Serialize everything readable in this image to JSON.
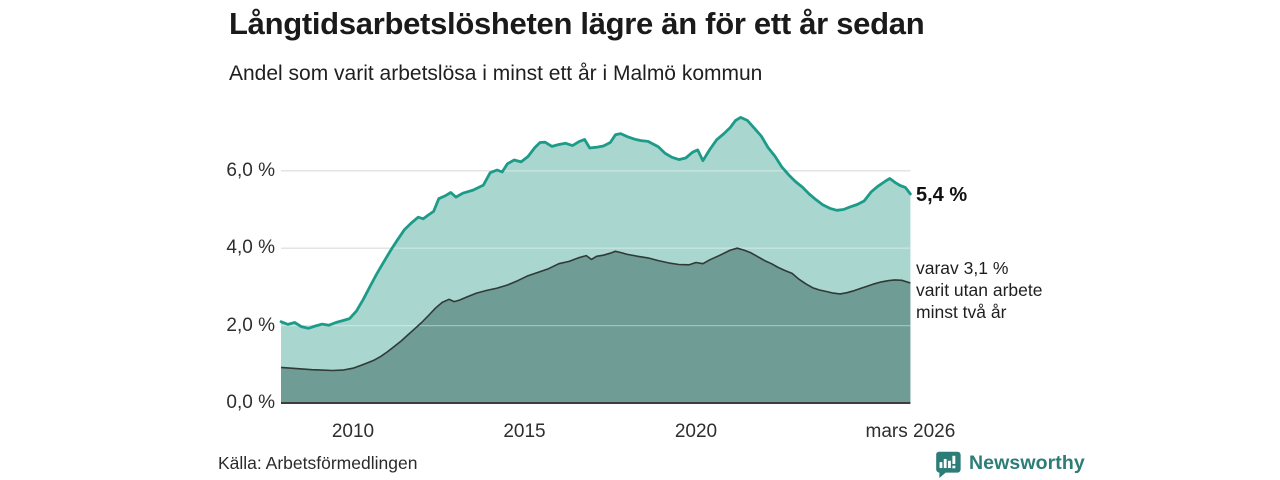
{
  "header": {
    "title": "Långtidsarbetslösheten lägre än för ett år sedan",
    "subtitle": "Andel som varit arbetslösa i minst ett år i Malmö kommun"
  },
  "chart_data": {
    "type": "area",
    "title": "Långtidsarbetslösheten lägre än för ett år sedan",
    "subtitle": "Andel som varit arbetslösa i minst ett år i Malmö kommun",
    "unit": "%",
    "x_range": [
      2007.9,
      2026.25
    ],
    "ylim": [
      0,
      7.6
    ],
    "grid": true,
    "y_ticks": [
      {
        "label": "0,0 %",
        "value": 0
      },
      {
        "label": "2,0 %",
        "value": 2
      },
      {
        "label": "4,0 %",
        "value": 4
      },
      {
        "label": "6,0 %",
        "value": 6
      }
    ],
    "x_ticks": [
      {
        "label": "2010",
        "year": 2010
      },
      {
        "label": "2015",
        "year": 2015
      },
      {
        "label": "2020",
        "year": 2020
      },
      {
        "label": "mars 2026",
        "year": 2026.25
      }
    ],
    "series": [
      {
        "name": "Andel som varit arbetslösa i minst ett år",
        "stroke": "#1d9b89",
        "fill": "#a9d6cf",
        "stroke_width": 2.8,
        "latest_value": 5.4,
        "points": [
          [
            2007.9,
            2.1
          ],
          [
            2008.1,
            2.03
          ],
          [
            2008.3,
            2.08
          ],
          [
            2008.5,
            1.97
          ],
          [
            2008.7,
            1.93
          ],
          [
            2008.9,
            1.99
          ],
          [
            2009.1,
            2.04
          ],
          [
            2009.3,
            2.01
          ],
          [
            2009.5,
            2.08
          ],
          [
            2009.7,
            2.13
          ],
          [
            2009.9,
            2.18
          ],
          [
            2010.1,
            2.38
          ],
          [
            2010.3,
            2.68
          ],
          [
            2010.5,
            3.02
          ],
          [
            2010.7,
            3.35
          ],
          [
            2010.9,
            3.65
          ],
          [
            2011.1,
            3.95
          ],
          [
            2011.3,
            4.22
          ],
          [
            2011.5,
            4.48
          ],
          [
            2011.7,
            4.65
          ],
          [
            2011.9,
            4.8
          ],
          [
            2012.05,
            4.76
          ],
          [
            2012.2,
            4.86
          ],
          [
            2012.35,
            4.95
          ],
          [
            2012.5,
            5.28
          ],
          [
            2012.7,
            5.36
          ],
          [
            2012.85,
            5.44
          ],
          [
            2013.0,
            5.32
          ],
          [
            2013.2,
            5.42
          ],
          [
            2013.5,
            5.5
          ],
          [
            2013.8,
            5.63
          ],
          [
            2014.0,
            5.95
          ],
          [
            2014.2,
            6.02
          ],
          [
            2014.35,
            5.97
          ],
          [
            2014.5,
            6.18
          ],
          [
            2014.7,
            6.28
          ],
          [
            2014.9,
            6.23
          ],
          [
            2015.1,
            6.37
          ],
          [
            2015.3,
            6.6
          ],
          [
            2015.45,
            6.73
          ],
          [
            2015.6,
            6.74
          ],
          [
            2015.8,
            6.63
          ],
          [
            2016.0,
            6.68
          ],
          [
            2016.2,
            6.71
          ],
          [
            2016.4,
            6.65
          ],
          [
            2016.6,
            6.76
          ],
          [
            2016.75,
            6.81
          ],
          [
            2016.9,
            6.59
          ],
          [
            2017.1,
            6.61
          ],
          [
            2017.3,
            6.64
          ],
          [
            2017.5,
            6.73
          ],
          [
            2017.65,
            6.93
          ],
          [
            2017.8,
            6.96
          ],
          [
            2018.0,
            6.88
          ],
          [
            2018.2,
            6.82
          ],
          [
            2018.4,
            6.78
          ],
          [
            2018.6,
            6.76
          ],
          [
            2018.9,
            6.62
          ],
          [
            2019.1,
            6.45
          ],
          [
            2019.3,
            6.35
          ],
          [
            2019.5,
            6.29
          ],
          [
            2019.7,
            6.33
          ],
          [
            2019.9,
            6.48
          ],
          [
            2020.05,
            6.54
          ],
          [
            2020.2,
            6.26
          ],
          [
            2020.4,
            6.55
          ],
          [
            2020.6,
            6.8
          ],
          [
            2020.8,
            6.95
          ],
          [
            2021.0,
            7.12
          ],
          [
            2021.15,
            7.3
          ],
          [
            2021.3,
            7.38
          ],
          [
            2021.5,
            7.3
          ],
          [
            2021.7,
            7.1
          ],
          [
            2021.9,
            6.9
          ],
          [
            2022.1,
            6.6
          ],
          [
            2022.3,
            6.38
          ],
          [
            2022.5,
            6.1
          ],
          [
            2022.7,
            5.9
          ],
          [
            2022.9,
            5.72
          ],
          [
            2023.1,
            5.58
          ],
          [
            2023.3,
            5.4
          ],
          [
            2023.5,
            5.25
          ],
          [
            2023.7,
            5.12
          ],
          [
            2023.9,
            5.03
          ],
          [
            2024.1,
            4.98
          ],
          [
            2024.3,
            5.0
          ],
          [
            2024.5,
            5.07
          ],
          [
            2024.7,
            5.13
          ],
          [
            2024.9,
            5.22
          ],
          [
            2025.1,
            5.45
          ],
          [
            2025.3,
            5.6
          ],
          [
            2025.5,
            5.72
          ],
          [
            2025.65,
            5.8
          ],
          [
            2025.8,
            5.7
          ],
          [
            2025.95,
            5.62
          ],
          [
            2026.1,
            5.57
          ],
          [
            2026.25,
            5.4
          ]
        ]
      },
      {
        "name": "varav utan arbete minst två år",
        "stroke": "#303a37",
        "fill": "#6f9c95",
        "stroke_width": 1.6,
        "latest_value": 3.1,
        "points": [
          [
            2007.9,
            0.92
          ],
          [
            2008.2,
            0.9
          ],
          [
            2008.5,
            0.88
          ],
          [
            2008.8,
            0.86
          ],
          [
            2009.1,
            0.85
          ],
          [
            2009.4,
            0.84
          ],
          [
            2009.7,
            0.85
          ],
          [
            2010.0,
            0.9
          ],
          [
            2010.2,
            0.96
          ],
          [
            2010.4,
            1.03
          ],
          [
            2010.6,
            1.1
          ],
          [
            2010.8,
            1.2
          ],
          [
            2011.0,
            1.32
          ],
          [
            2011.2,
            1.46
          ],
          [
            2011.4,
            1.6
          ],
          [
            2011.6,
            1.76
          ],
          [
            2011.8,
            1.92
          ],
          [
            2012.0,
            2.08
          ],
          [
            2012.2,
            2.26
          ],
          [
            2012.4,
            2.45
          ],
          [
            2012.6,
            2.6
          ],
          [
            2012.8,
            2.68
          ],
          [
            2012.95,
            2.62
          ],
          [
            2013.1,
            2.66
          ],
          [
            2013.3,
            2.73
          ],
          [
            2013.6,
            2.84
          ],
          [
            2013.9,
            2.91
          ],
          [
            2014.2,
            2.97
          ],
          [
            2014.5,
            3.05
          ],
          [
            2014.8,
            3.16
          ],
          [
            2015.1,
            3.29
          ],
          [
            2015.4,
            3.38
          ],
          [
            2015.7,
            3.47
          ],
          [
            2016.0,
            3.6
          ],
          [
            2016.3,
            3.66
          ],
          [
            2016.6,
            3.76
          ],
          [
            2016.8,
            3.81
          ],
          [
            2016.95,
            3.71
          ],
          [
            2017.1,
            3.79
          ],
          [
            2017.3,
            3.82
          ],
          [
            2017.5,
            3.87
          ],
          [
            2017.65,
            3.92
          ],
          [
            2017.8,
            3.89
          ],
          [
            2018.0,
            3.84
          ],
          [
            2018.3,
            3.79
          ],
          [
            2018.6,
            3.75
          ],
          [
            2018.9,
            3.68
          ],
          [
            2019.2,
            3.62
          ],
          [
            2019.5,
            3.58
          ],
          [
            2019.8,
            3.57
          ],
          [
            2020.0,
            3.63
          ],
          [
            2020.2,
            3.6
          ],
          [
            2020.4,
            3.7
          ],
          [
            2020.7,
            3.82
          ],
          [
            2021.0,
            3.95
          ],
          [
            2021.2,
            4.0
          ],
          [
            2021.4,
            3.95
          ],
          [
            2021.6,
            3.88
          ],
          [
            2021.8,
            3.78
          ],
          [
            2022.0,
            3.68
          ],
          [
            2022.2,
            3.6
          ],
          [
            2022.4,
            3.5
          ],
          [
            2022.6,
            3.42
          ],
          [
            2022.8,
            3.35
          ],
          [
            2023.0,
            3.2
          ],
          [
            2023.2,
            3.08
          ],
          [
            2023.4,
            2.98
          ],
          [
            2023.6,
            2.92
          ],
          [
            2023.8,
            2.88
          ],
          [
            2024.0,
            2.84
          ],
          [
            2024.2,
            2.82
          ],
          [
            2024.4,
            2.85
          ],
          [
            2024.6,
            2.9
          ],
          [
            2024.8,
            2.96
          ],
          [
            2025.0,
            3.02
          ],
          [
            2025.2,
            3.08
          ],
          [
            2025.4,
            3.13
          ],
          [
            2025.6,
            3.16
          ],
          [
            2025.8,
            3.18
          ],
          [
            2026.0,
            3.17
          ],
          [
            2026.25,
            3.1
          ]
        ]
      }
    ],
    "annotations": {
      "latest_total": "5,4 %",
      "secondary": [
        "varav 3,1 %",
        "varit utan arbete",
        "minst två år"
      ]
    },
    "colors": {
      "accent_teal": "#1d9b89",
      "fill_light": "#a9d6cf",
      "fill_dark": "#6f9c95",
      "dark_line": "#303a37",
      "gridline": "#d2d2d2",
      "baseline": "#3d3d3d",
      "brand_teal": "#2c7d78"
    }
  },
  "footer": {
    "source": "Källa: Arbetsförmedlingen",
    "brand": "Newsworthy"
  }
}
